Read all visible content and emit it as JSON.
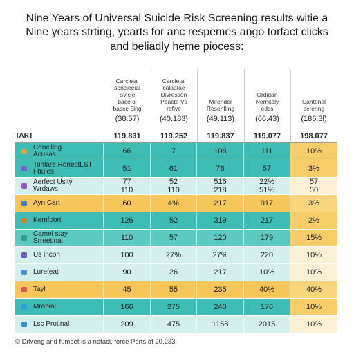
{
  "header": {
    "title": [
      "Nine Years of Universal Suicide Risk Screening results witie a",
      "Nine years strting, yearts for anc respemes ango torfact clicks",
      "and beliadly heme piocess:"
    ]
  },
  "table": {
    "columns": [
      "Carcleial\nsoncieeial\nSvicle\nbace ol\nbasce 5ing",
      "Carcietal\ncalaatae\nDivrestion\nPeacte Vs\nrefive",
      "Mirender\nResenfling",
      "Ordidan\nNernitoly\nedcs",
      "Cantonal\nscrering"
    ],
    "subheader": [
      "(38.57)",
      "(40.183)",
      "(49.113)",
      "(66.43)",
      "(186.3l)"
    ],
    "total_row": [
      "TART",
      "119.831",
      "119.252",
      "119.837",
      "119.077",
      "198.077"
    ],
    "rows": [
      [
        "Cenciling\nAcusas",
        "66",
        "7",
        "108",
        "111",
        "10%"
      ],
      [
        "Tonlare RonestLST\nFbules",
        "51",
        "61",
        "78",
        "57",
        "3%"
      ],
      [
        "Aerfect Usity\nWrdaws",
        "77\n110",
        "52\n110",
        "516\n218",
        "22%\n51%",
        "57\n50"
      ],
      [
        "Ayn Cart",
        "60",
        "4%",
        "217",
        "917",
        "3%"
      ],
      [
        "Kemfoort",
        "126",
        "52",
        "319",
        "217",
        "2%"
      ],
      [
        "Camel stay\nSrreetinal",
        "110",
        "57",
        "120",
        "179",
        "15%"
      ],
      [
        "Us incon",
        "100",
        "27%",
        "27%",
        "220",
        "10%"
      ],
      [
        "Lurefeat",
        "90",
        "26",
        "217",
        "10%",
        "10%"
      ],
      [
        "Tayl",
        "45",
        "55",
        "235",
        "40%",
        "40%"
      ],
      [
        "Mrabial",
        "166",
        "275",
        "240",
        "176",
        "10%"
      ],
      [
        "Lsc Protinal",
        "209",
        "475",
        "1158",
        "2015",
        "10%"
      ]
    ]
  },
  "footer": {
    "note": "© Drlveng and fumeet is a notacl, force Ports of 20,233."
  }
}
